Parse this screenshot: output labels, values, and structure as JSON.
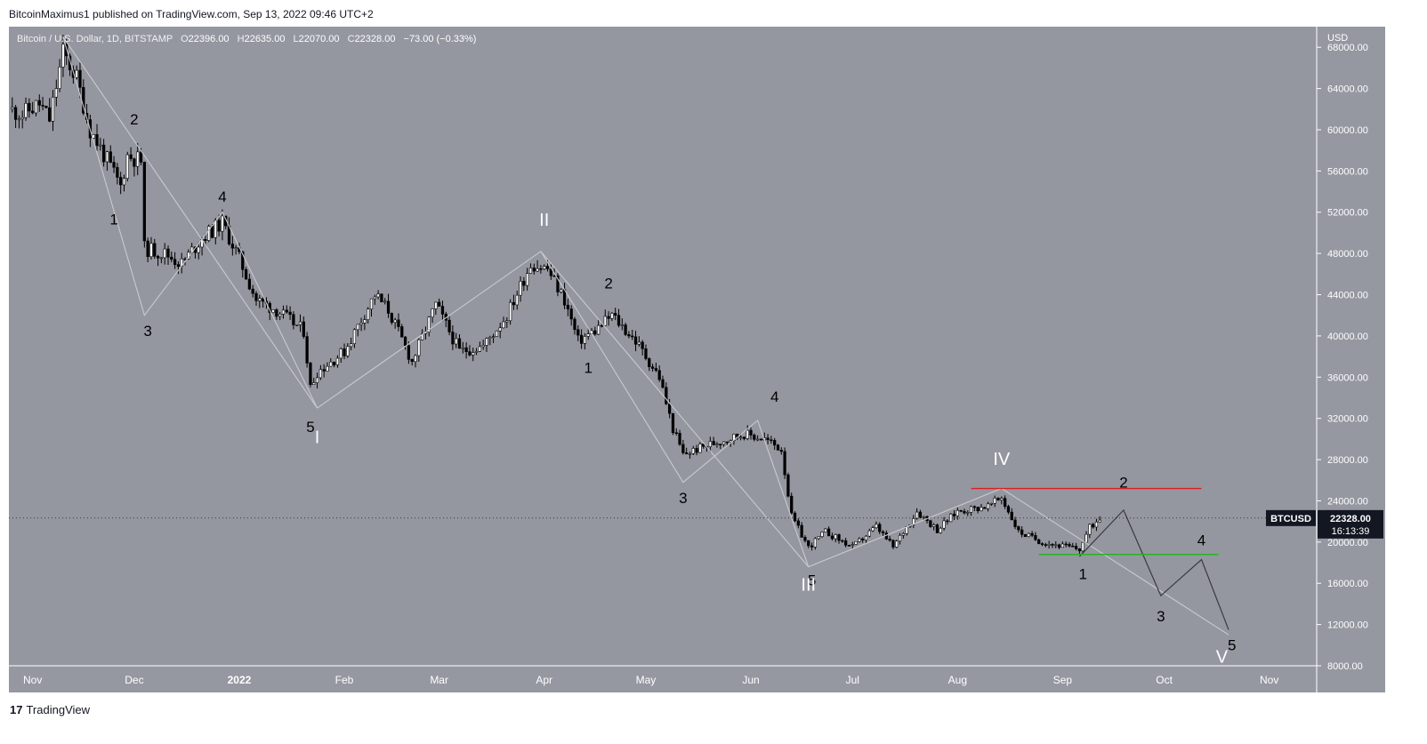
{
  "header": {
    "publisher_line": "BitcoinMaximus1 published on TradingView.com, Sep 13, 2022 09:46 UTC+2"
  },
  "legend": {
    "symbol": "Bitcoin / U.S. Dollar, 1D, BITSTAMP",
    "o_label": "O",
    "o": "22396.00",
    "h_label": "H",
    "h": "22635.00",
    "l_label": "L",
    "l": "22070.00",
    "c_label": "C",
    "c": "22328.00",
    "change": "−73.00 (−0.33%)"
  },
  "price_badge": {
    "symbol": "BTCUSD",
    "price": "22328.00",
    "countdown": "16:13:39"
  },
  "footer": {
    "brand": "TradingView",
    "logo_glyph": "17"
  },
  "colors": {
    "plot_bg": "#9497a0",
    "axis_bg": "#9598a1",
    "up_candle": "#ffffff",
    "down_candle": "#000000",
    "resistance": "#e01e1e",
    "support": "#23b523",
    "wave_line": "#c9cace",
    "projection": "#3a3a3a"
  },
  "chart_data": {
    "type": "candlestick",
    "currency_label": "USD",
    "y_ticks": [
      "68000.00",
      "64000.00",
      "60000.00",
      "56000.00",
      "52000.00",
      "48000.00",
      "44000.00",
      "40000.00",
      "36000.00",
      "32000.00",
      "28000.00",
      "24000.00",
      "20000.00",
      "16000.00",
      "12000.00",
      "8000.00"
    ],
    "ylim": [
      8000,
      70000
    ],
    "x_ticks": [
      "Nov",
      "Dec",
      "2022",
      "Feb",
      "Mar",
      "Apr",
      "May",
      "Jun",
      "Jul",
      "Aug",
      "Sep",
      "Oct",
      "Nov"
    ],
    "x_tick_dates": [
      "2021-11-01",
      "2021-12-01",
      "2022-01-01",
      "2022-02-01",
      "2022-03-01",
      "2022-04-01",
      "2022-05-01",
      "2022-06-01",
      "2022-07-01",
      "2022-08-01",
      "2022-09-01",
      "2022-10-01",
      "2022-11-01"
    ],
    "xlim": [
      "2021-10-25",
      "2022-11-15"
    ],
    "price_path": [
      [
        "2021-10-25",
        62000
      ],
      [
        "2021-10-29",
        61500
      ],
      [
        "2021-11-03",
        62500
      ],
      [
        "2021-11-06",
        61000
      ],
      [
        "2021-11-10",
        67500
      ],
      [
        "2021-11-14",
        65000
      ],
      [
        "2021-11-18",
        60000
      ],
      [
        "2021-11-23",
        57000
      ],
      [
        "2021-11-27",
        54500
      ],
      [
        "2021-11-29",
        57500
      ],
      [
        "2021-12-03",
        57000
      ],
      [
        "2021-12-04",
        48500
      ],
      [
        "2021-12-10",
        48000
      ],
      [
        "2021-12-15",
        47000
      ],
      [
        "2021-12-21",
        49500
      ],
      [
        "2021-12-27",
        51000
      ],
      [
        "2022-01-01",
        47500
      ],
      [
        "2022-01-06",
        43500
      ],
      [
        "2022-01-12",
        42500
      ],
      [
        "2022-01-20",
        40500
      ],
      [
        "2022-01-22",
        35000
      ],
      [
        "2022-01-24",
        36500
      ],
      [
        "2022-02-01",
        38500
      ],
      [
        "2022-02-10",
        44000
      ],
      [
        "2022-02-14",
        42500
      ],
      [
        "2022-02-21",
        37500
      ],
      [
        "2022-02-28",
        43000
      ],
      [
        "2022-03-07",
        38500
      ],
      [
        "2022-03-14",
        39000
      ],
      [
        "2022-03-21",
        42000
      ],
      [
        "2022-03-28",
        47000
      ],
      [
        "2022-04-02",
        46500
      ],
      [
        "2022-04-07",
        43500
      ],
      [
        "2022-04-11",
        39500
      ],
      [
        "2022-04-16",
        40500
      ],
      [
        "2022-04-21",
        42000
      ],
      [
        "2022-04-28",
        39500
      ],
      [
        "2022-05-05",
        36000
      ],
      [
        "2022-05-09",
        31000
      ],
      [
        "2022-05-12",
        28500
      ],
      [
        "2022-05-20",
        29500
      ],
      [
        "2022-05-30",
        30500
      ],
      [
        "2022-06-05",
        30000
      ],
      [
        "2022-06-10",
        29000
      ],
      [
        "2022-06-13",
        22500
      ],
      [
        "2022-06-18",
        19500
      ],
      [
        "2022-06-23",
        21000
      ],
      [
        "2022-07-01",
        19500
      ],
      [
        "2022-07-08",
        21500
      ],
      [
        "2022-07-13",
        19500
      ],
      [
        "2022-07-20",
        23000
      ],
      [
        "2022-07-26",
        21200
      ],
      [
        "2022-08-01",
        23000
      ],
      [
        "2022-08-10",
        23500
      ],
      [
        "2022-08-14",
        24300
      ],
      [
        "2022-08-19",
        21000
      ],
      [
        "2022-08-26",
        20000
      ],
      [
        "2022-09-06",
        19300
      ],
      [
        "2022-09-09",
        21400
      ],
      [
        "2022-09-12",
        22328
      ]
    ],
    "wave_lines": [
      [
        [
          "2021-11-10",
          69000
        ],
        [
          "2021-12-04",
          42000
        ],
        [
          "2021-12-27",
          52000
        ],
        [
          "2022-01-24",
          33000
        ]
      ],
      [
        [
          "2021-11-10",
          69000
        ],
        [
          "2022-01-24",
          33000
        ]
      ],
      [
        [
          "2022-01-24",
          33000
        ],
        [
          "2022-03-31",
          48200
        ],
        [
          "2022-06-18",
          17600
        ],
        [
          "2022-08-14",
          25200
        ],
        [
          "2022-10-20",
          11000
        ]
      ],
      [
        [
          "2022-03-31",
          48200
        ],
        [
          "2022-05-12",
          25800
        ],
        [
          "2022-06-03",
          31800
        ],
        [
          "2022-06-18",
          17600
        ]
      ]
    ],
    "projection_path": [
      [
        "2022-09-06",
        18600
      ],
      [
        "2022-09-19",
        23100
      ],
      [
        "2022-09-30",
        14800
      ],
      [
        "2022-10-12",
        18300
      ],
      [
        "2022-10-20",
        11500
      ]
    ],
    "resistance_line": {
      "from": "2022-08-05",
      "to": "2022-10-12",
      "y": 25200
    },
    "support_line": {
      "from": "2022-08-25",
      "to": "2022-10-17",
      "y": 18800
    },
    "wave_labels": [
      {
        "text": "2",
        "date": "2021-12-01",
        "y": 60500,
        "roman": false
      },
      {
        "text": "1",
        "date": "2021-11-25",
        "y": 50800,
        "roman": false
      },
      {
        "text": "4",
        "date": "2021-12-27",
        "y": 53000,
        "roman": false
      },
      {
        "text": "3",
        "date": "2021-12-05",
        "y": 40000,
        "roman": false
      },
      {
        "text": "5",
        "date": "2022-01-22",
        "y": 30700,
        "roman": false
      },
      {
        "text": "I",
        "date": "2022-01-24",
        "y": 29600,
        "roman": true
      },
      {
        "text": "II",
        "date": "2022-04-01",
        "y": 50700,
        "roman": true
      },
      {
        "text": "2",
        "date": "2022-04-20",
        "y": 44600,
        "roman": false
      },
      {
        "text": "1",
        "date": "2022-04-14",
        "y": 36400,
        "roman": false
      },
      {
        "text": "4",
        "date": "2022-06-08",
        "y": 33600,
        "roman": false
      },
      {
        "text": "3",
        "date": "2022-05-12",
        "y": 23800,
        "roman": false
      },
      {
        "text": "5",
        "date": "2022-06-19",
        "y": 15800,
        "roman": false
      },
      {
        "text": "III",
        "date": "2022-06-18",
        "y": 15300,
        "roman": true
      },
      {
        "text": "IV",
        "date": "2022-08-14",
        "y": 27500,
        "roman": true
      },
      {
        "text": "2",
        "date": "2022-09-19",
        "y": 25300,
        "roman": false
      },
      {
        "text": "1",
        "date": "2022-09-07",
        "y": 16400,
        "roman": false
      },
      {
        "text": "4",
        "date": "2022-10-12",
        "y": 19700,
        "roman": false
      },
      {
        "text": "3",
        "date": "2022-09-30",
        "y": 12300,
        "roman": false
      },
      {
        "text": "5",
        "date": "2022-10-21",
        "y": 9500,
        "roman": false
      },
      {
        "text": "V",
        "date": "2022-10-18",
        "y": 8300,
        "roman": true
      }
    ],
    "grid": false,
    "legend": "top-left"
  }
}
